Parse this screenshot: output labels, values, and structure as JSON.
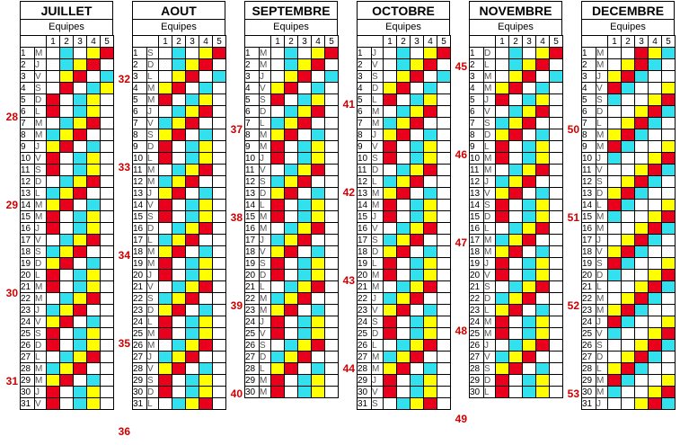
{
  "header": {
    "equipes_label": "Equipes",
    "team_numbers": [
      "1",
      "2",
      "3",
      "4",
      "5"
    ]
  },
  "colors": {
    "red": "#e8001c",
    "yellow": "#ffff00",
    "cyan": "#33e0ee",
    "white": "#ffffff",
    "week": "#d00000"
  },
  "legend": {
    "R": "red",
    "Y": "yellow",
    "C": "cyan",
    "W": "white"
  },
  "months": [
    {
      "name": "JUILLET",
      "days": [
        "M",
        "J",
        "V",
        "S",
        "D",
        "L",
        "M",
        "M",
        "J",
        "V",
        "S",
        "D",
        "L",
        "M",
        "M",
        "J",
        "V",
        "S",
        "D",
        "L",
        "M",
        "M",
        "J",
        "V",
        "S",
        "D",
        "L",
        "M",
        "M",
        "J",
        "V"
      ],
      "weeks": [
        {
          "label": "28",
          "row": 6
        },
        {
          "label": "29",
          "row": 13
        },
        {
          "label": "30",
          "row": 20
        },
        {
          "label": "31",
          "row": 27
        }
      ],
      "pattern": [
        "WCWYR",
        "WCYRW",
        "WYRWC",
        "WRWCY",
        "RWCYW",
        "RWCYW",
        "WCYRW",
        "CYRWW",
        "YRWCW",
        "RWCYW",
        "RWCYW",
        "WCYRW",
        "CYRWW",
        "YRWCW",
        "RWCYW",
        "RWCYW",
        "WCYRW",
        "CYRWW",
        "YRWCW",
        "RWCYW",
        "RWCYW",
        "WCYRW",
        "CYRWW",
        "YRWCW",
        "RWCYW",
        "RWCYW",
        "WCYRW",
        "CYRWW",
        "YRWCW",
        "RWCYW",
        "RWCYW"
      ]
    },
    {
      "name": "AOUT",
      "days": [
        "S",
        "D",
        "L",
        "M",
        "M",
        "J",
        "V",
        "S",
        "D",
        "L",
        "M",
        "M",
        "J",
        "V",
        "S",
        "D",
        "L",
        "M",
        "M",
        "J",
        "V",
        "S",
        "D",
        "L",
        "M",
        "M",
        "J",
        "V",
        "S",
        "D",
        "L"
      ],
      "weeks": [
        {
          "label": "32",
          "row": 3
        },
        {
          "label": "33",
          "row": 10
        },
        {
          "label": "34",
          "row": 17
        },
        {
          "label": "35",
          "row": 24
        },
        {
          "label": "36",
          "row": 31
        }
      ],
      "pattern": [
        "WCWYR",
        "WCYRW",
        "WYRWC",
        "YRWCW",
        "RWCYW",
        "WCYRW",
        "CYRWW",
        "YRWCW",
        "RWCYW",
        "RWCYW",
        "WCYRW",
        "CYRWW",
        "YRWCW",
        "RWCYW",
        "RWCYW",
        "WCYRW",
        "CYRWW",
        "YRWCW",
        "RWCYW",
        "RWCYW",
        "WCYRW",
        "CYRWW",
        "YRWCW",
        "RWCYW",
        "RWCYW",
        "WCYRW",
        "CYRWW",
        "YRWCW",
        "RWCYW",
        "RWCYW",
        "WCYRW"
      ]
    },
    {
      "name": "SEPTEMBRE",
      "days": [
        "M",
        "M",
        "J",
        "V",
        "S",
        "D",
        "L",
        "M",
        "M",
        "J",
        "V",
        "S",
        "D",
        "L",
        "M",
        "M",
        "J",
        "V",
        "S",
        "D",
        "L",
        "M",
        "M",
        "J",
        "V",
        "S",
        "D",
        "L",
        "M",
        "M"
      ],
      "weeks": [
        {
          "label": "37",
          "row": 7
        },
        {
          "label": "38",
          "row": 14
        },
        {
          "label": "39",
          "row": 21
        },
        {
          "label": "40",
          "row": 28
        }
      ],
      "pattern": [
        "WCWYR",
        "WCYRW",
        "WYRWC",
        "YRWCW",
        "RWCYW",
        "WCYRW",
        "CYRWW",
        "YRWCW",
        "RWCYW",
        "RWCYW",
        "WCYRW",
        "CYRWW",
        "YRWCW",
        "RWCYW",
        "RWCYW",
        "WCYRW",
        "CYRWW",
        "YRWCW",
        "RWCYW",
        "RWCYW",
        "WCYRW",
        "CYRWW",
        "YRWCW",
        "RWCYW",
        "RWCYW",
        "WCYRW",
        "CYRWW",
        "YRWCW",
        "RWCYW",
        "RWCYW"
      ]
    },
    {
      "name": "OCTOBRE",
      "days": [
        "J",
        "V",
        "S",
        "D",
        "L",
        "M",
        "M",
        "J",
        "V",
        "S",
        "D",
        "L",
        "M",
        "M",
        "J",
        "V",
        "S",
        "D",
        "L",
        "M",
        "M",
        "J",
        "V",
        "S",
        "D",
        "L",
        "M",
        "M",
        "J",
        "V",
        "S"
      ],
      "weeks": [
        {
          "label": "41",
          "row": 5
        },
        {
          "label": "42",
          "row": 12
        },
        {
          "label": "43",
          "row": 19
        },
        {
          "label": "44",
          "row": 26
        }
      ],
      "pattern": [
        "WCWYR",
        "WCYRW",
        "WYRWC",
        "YRWCW",
        "RWCYW",
        "WCYRW",
        "CYRWW",
        "YRWCW",
        "RWCYW",
        "RWCYW",
        "WCYRW",
        "CYRWW",
        "YRWCW",
        "RWCYW",
        "RWCYW",
        "WCYRW",
        "CYRWW",
        "YRWCW",
        "RWCYW",
        "RWCYW",
        "WCYRW",
        "CYRWW",
        "YRWCW",
        "RWCYW",
        "RWCYW",
        "WCYRW",
        "CYRWW",
        "YRWCW",
        "RWCYW",
        "RWCYW",
        "WCYRW"
      ]
    },
    {
      "name": "NOVEMBRE",
      "days": [
        "D",
        "L",
        "M",
        "M",
        "J",
        "V",
        "S",
        "D",
        "L",
        "M",
        "M",
        "J",
        "V",
        "S",
        "D",
        "L",
        "M",
        "M",
        "J",
        "V",
        "S",
        "D",
        "L",
        "M",
        "M",
        "J",
        "V",
        "S",
        "D",
        "L"
      ],
      "weeks": [
        {
          "label": "45",
          "row": 2
        },
        {
          "label": "46",
          "row": 9
        },
        {
          "label": "47",
          "row": 16
        },
        {
          "label": "48",
          "row": 23
        },
        {
          "label": "49",
          "row": 30
        }
      ],
      "pattern": [
        "WCWYR",
        "WCYRW",
        "WYRWC",
        "YRWCW",
        "RWCYW",
        "WCYRW",
        "CYRWW",
        "YRWCW",
        "RWCYW",
        "RWCYW",
        "WCYRW",
        "CYRWW",
        "YRWCW",
        "RWCYW",
        "RWCYW",
        "WCYRW",
        "CYRWW",
        "YRWCW",
        "RWCYW",
        "RWCYW",
        "WCYRW",
        "CYRWW",
        "YRWCW",
        "RWCYW",
        "RWCYW",
        "WCYRW",
        "CYRWW",
        "YRWCW",
        "RWCYW",
        "RWCYW"
      ]
    },
    {
      "name": "DECEMBRE",
      "days": [
        "M",
        "M",
        "J",
        "V",
        "S",
        "D",
        "L",
        "M",
        "M",
        "J",
        "V",
        "S",
        "D",
        "L",
        "M",
        "M",
        "J",
        "V",
        "S",
        "D",
        "L",
        "M",
        "M",
        "J",
        "V",
        "S",
        "D",
        "L",
        "M",
        "M",
        "J"
      ],
      "weeks": [
        {
          "label": "50",
          "row": 7
        },
        {
          "label": "51",
          "row": 14
        },
        {
          "label": "52",
          "row": 21
        },
        {
          "label": "53",
          "row": 28
        }
      ],
      "pattern": [
        "WWRYC",
        "WYRCW",
        "YRCWW",
        "RCWWY",
        "CWWYR",
        "WWYRC",
        "WYRCW",
        "YRCWW",
        "RCWWY",
        "CWWYR",
        "WWYRC",
        "WYRCW",
        "YRCWW",
        "RCWWY",
        "CWWYR",
        "WWYRC",
        "WYRCW",
        "YRCWW",
        "RCWWY",
        "CWWYR",
        "WWYRC",
        "WYRCW",
        "YRCWW",
        "RCWWY",
        "CWWYR",
        "WWYRC",
        "WYRCW",
        "YRCWW",
        "RCWWY",
        "CWWYR",
        "WWYRC"
      ]
    }
  ]
}
